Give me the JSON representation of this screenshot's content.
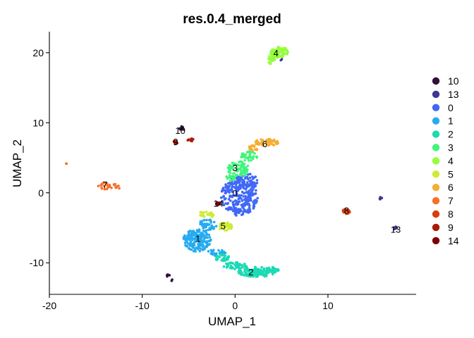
{
  "chart_data": {
    "type": "scatter",
    "title": "res.0.4_merged",
    "xlabel": "UMAP_1",
    "ylabel": "UMAP_2",
    "xlim": [
      -20,
      19.5
    ],
    "ylim": [
      -14.5,
      23
    ],
    "xticks": [
      -20,
      -10,
      0,
      10
    ],
    "yticks": [
      -10,
      0,
      10,
      20
    ],
    "grid": false,
    "legend_position": "right",
    "legend": [
      {
        "label": "10",
        "color": "#30123B"
      },
      {
        "label": "13",
        "color": "#3E3891"
      },
      {
        "label": "0",
        "color": "#4168F6"
      },
      {
        "label": "1",
        "color": "#26ABF0"
      },
      {
        "label": "2",
        "color": "#1BDAB4"
      },
      {
        "label": "3",
        "color": "#40F57A"
      },
      {
        "label": "4",
        "color": "#94FE3C"
      },
      {
        "label": "5",
        "color": "#D0EA36"
      },
      {
        "label": "6",
        "color": "#F5AE33"
      },
      {
        "label": "7",
        "color": "#F7712A"
      },
      {
        "label": "8",
        "color": "#DA3D0D"
      },
      {
        "label": "9",
        "color": "#AA1A03"
      },
      {
        "label": "14",
        "color": "#7A0403"
      }
    ],
    "clusters": [
      {
        "label": "0",
        "color": "#4168F6",
        "label_pos": [
          0,
          0
        ],
        "blobs": [
          {
            "cx": 0.5,
            "cy": -0.5,
            "rx": 2.0,
            "ry": 2.8,
            "n": 260
          },
          {
            "cx": 1.0,
            "cy": 1.8,
            "rx": 1.5,
            "ry": 1.0,
            "n": 60
          }
        ]
      },
      {
        "label": "1",
        "color": "#26ABF0",
        "label_pos": [
          -4,
          -6.5
        ],
        "blobs": [
          {
            "cx": -4.1,
            "cy": -6.8,
            "rx": 1.5,
            "ry": 1.6,
            "n": 170
          },
          {
            "cx": -3.0,
            "cy": -4.6,
            "rx": 1.0,
            "ry": 0.8,
            "n": 45
          },
          {
            "cx": -2.0,
            "cy": -8.6,
            "rx": 1.0,
            "ry": 0.6,
            "n": 30
          }
        ]
      },
      {
        "label": "2",
        "color": "#1BDAB4",
        "label_pos": [
          1.7,
          -11.3
        ],
        "blobs": [
          {
            "cx": 2.3,
            "cy": -11.3,
            "rx": 2.0,
            "ry": 0.7,
            "n": 120
          },
          {
            "cx": 0.0,
            "cy": -10.4,
            "rx": 1.3,
            "ry": 0.5,
            "n": 50
          },
          {
            "cx": -1.4,
            "cy": -9.3,
            "rx": 0.8,
            "ry": 0.5,
            "n": 30
          },
          {
            "cx": 4.0,
            "cy": -11.0,
            "rx": 0.7,
            "ry": 0.4,
            "n": 25
          }
        ]
      },
      {
        "label": "3",
        "color": "#40F57A",
        "label_pos": [
          0,
          3.6
        ],
        "blobs": [
          {
            "cx": 0.4,
            "cy": 3.4,
            "rx": 1.2,
            "ry": 1.1,
            "n": 70
          },
          {
            "cx": 1.5,
            "cy": 5.2,
            "rx": 0.9,
            "ry": 0.7,
            "n": 35
          },
          {
            "cx": -0.5,
            "cy": 2.2,
            "rx": 0.5,
            "ry": 0.5,
            "n": 15
          }
        ]
      },
      {
        "label": "4",
        "color": "#94FE3C",
        "label_pos": [
          4.4,
          20
        ],
        "blobs": [
          {
            "cx": 4.7,
            "cy": 20.1,
            "rx": 1.0,
            "ry": 0.8,
            "n": 90
          },
          {
            "cx": 3.9,
            "cy": 19.0,
            "rx": 0.4,
            "ry": 0.6,
            "n": 20
          }
        ]
      },
      {
        "label": "5",
        "color": "#D0EA36",
        "label_pos": [
          -1.3,
          -4.7
        ],
        "blobs": [
          {
            "cx": -1.0,
            "cy": -4.8,
            "rx": 0.8,
            "ry": 0.6,
            "n": 55
          },
          {
            "cx": -3.1,
            "cy": -3.1,
            "rx": 0.8,
            "ry": 0.5,
            "n": 25
          }
        ]
      },
      {
        "label": "6",
        "color": "#F5AE33",
        "label_pos": [
          3.2,
          7
        ],
        "blobs": [
          {
            "cx": 3.4,
            "cy": 7.2,
            "rx": 1.3,
            "ry": 0.5,
            "n": 55
          },
          {
            "cx": 2.0,
            "cy": 6.4,
            "rx": 0.6,
            "ry": 0.4,
            "n": 15
          }
        ]
      },
      {
        "label": "7",
        "color": "#F7712A",
        "label_pos": [
          -14,
          1.2
        ],
        "blobs": [
          {
            "cx": -13.8,
            "cy": 1.0,
            "rx": 1.0,
            "ry": 0.6,
            "n": 22
          },
          {
            "cx": -12.5,
            "cy": 0.7,
            "rx": 0.4,
            "ry": 0.3,
            "n": 6
          },
          {
            "cx": -18.2,
            "cy": 4.1,
            "rx": 0.1,
            "ry": 0.1,
            "n": 2
          }
        ]
      },
      {
        "label": "8",
        "color": "#DA3D0D",
        "label_pos": [
          12,
          -2.5
        ],
        "blobs": [
          {
            "cx": 12.0,
            "cy": -2.6,
            "rx": 0.4,
            "ry": 0.4,
            "n": 25
          }
        ]
      },
      {
        "label": "9",
        "color": "#AA1A03",
        "label_pos": [
          -6.4,
          7.3
        ],
        "blobs": [
          {
            "cx": -6.4,
            "cy": 7.2,
            "rx": 0.25,
            "ry": 0.3,
            "n": 10
          },
          {
            "cx": -4.8,
            "cy": 7.6,
            "rx": 0.4,
            "ry": 0.3,
            "n": 8
          }
        ]
      },
      {
        "label": "10",
        "color": "#30123B",
        "label_pos": [
          -5.9,
          8.9
        ],
        "blobs": [
          {
            "cx": -5.8,
            "cy": 9.2,
            "rx": 0.3,
            "ry": 0.3,
            "n": 10
          },
          {
            "cx": -7.2,
            "cy": -11.9,
            "rx": 0.2,
            "ry": 0.4,
            "n": 5
          },
          {
            "cx": -6.8,
            "cy": -12.5,
            "rx": 0.1,
            "ry": 0.1,
            "n": 2
          }
        ]
      },
      {
        "label": "13",
        "color": "#3E3891",
        "label_pos": [
          17.3,
          -5.2
        ],
        "blobs": [
          {
            "cx": 17.2,
            "cy": -4.9,
            "rx": 0.3,
            "ry": 0.3,
            "n": 8
          },
          {
            "cx": 15.7,
            "cy": -0.8,
            "rx": 0.15,
            "ry": 0.2,
            "n": 4
          },
          {
            "cx": 5.0,
            "cy": 19.0,
            "rx": 0.1,
            "ry": 0.1,
            "n": 2
          }
        ]
      },
      {
        "label": "14",
        "color": "#7A0403",
        "label_pos": [
          -1.8,
          -1.5
        ],
        "blobs": [
          {
            "cx": -1.8,
            "cy": -1.5,
            "rx": 0.25,
            "ry": 0.25,
            "n": 8
          }
        ]
      }
    ]
  }
}
